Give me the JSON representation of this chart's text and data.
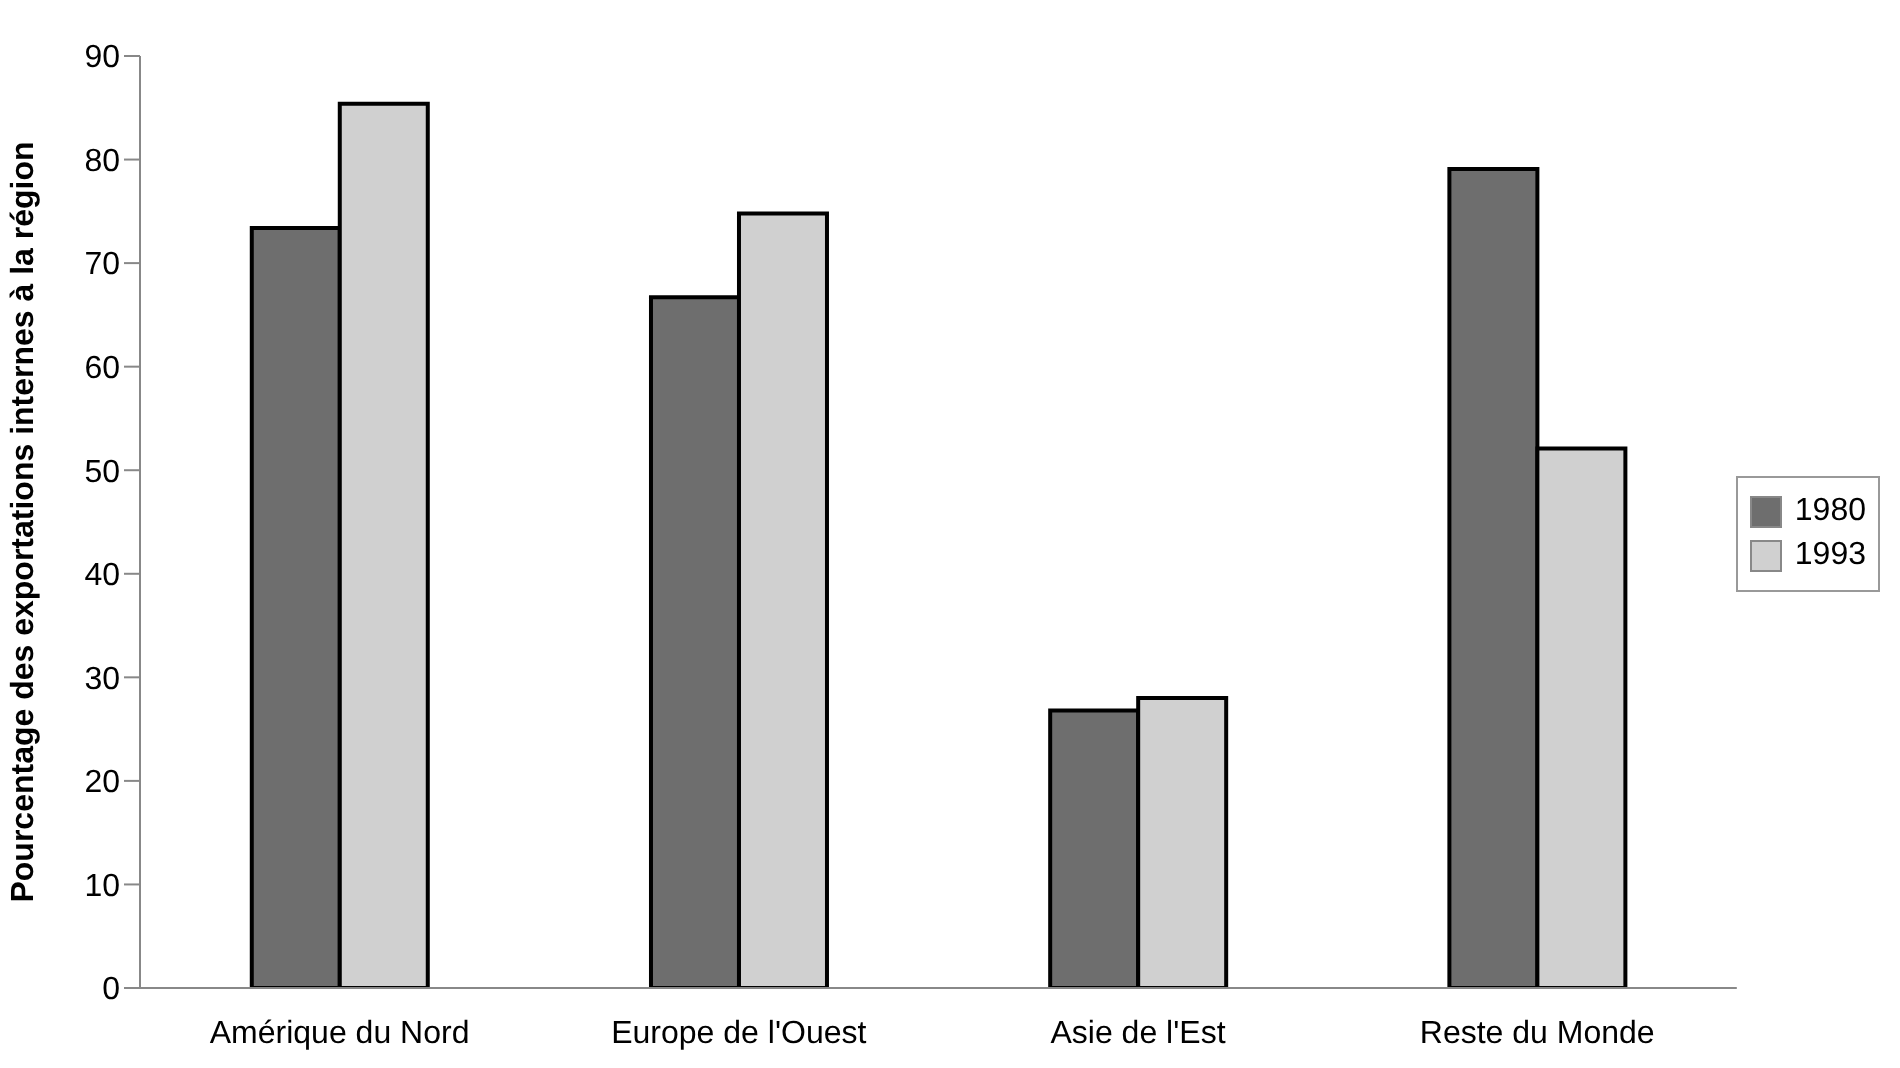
{
  "chart_data": {
    "type": "bar",
    "ylabel": "Pourcentage des exportations internes à la région",
    "categories": [
      "Amérique du Nord",
      "Europe de l'Ouest",
      "Asie de l'Est",
      "Reste du Monde"
    ],
    "series": [
      {
        "name": "1980",
        "color": "#6e6e6e",
        "values": [
          73.4,
          66.7,
          26.8,
          79.1
        ]
      },
      {
        "name": "1993",
        "color": "#d0d0d0",
        "values": [
          85.4,
          74.8,
          28.0,
          52.1
        ]
      }
    ],
    "ylim": [
      0,
      90
    ],
    "yticks": [
      0,
      10,
      20,
      30,
      40,
      50,
      60,
      70,
      80,
      90
    ],
    "grid": false,
    "legend": "right"
  }
}
